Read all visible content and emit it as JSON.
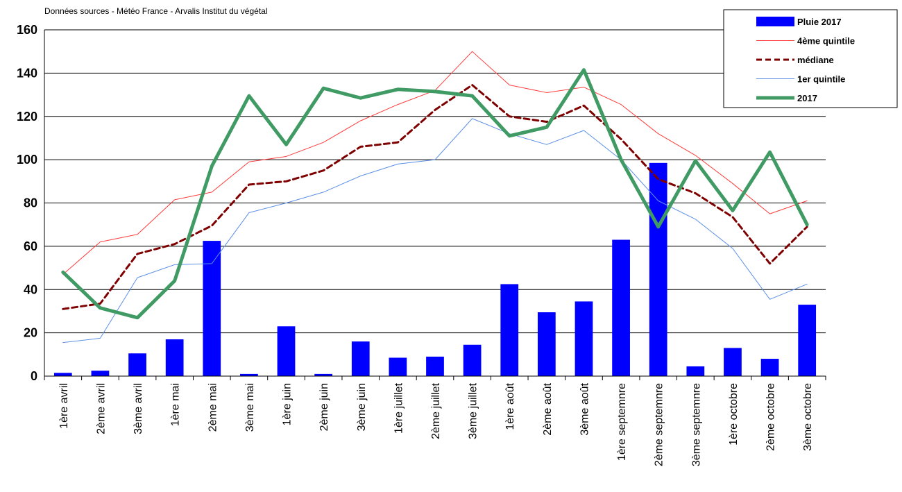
{
  "source_note": "Données sources - Météo France - Arvalis Institut du végétal",
  "colors": {
    "bars": "#0000ff",
    "q4": "#ff3b3b",
    "median": "#7f0000",
    "q1": "#5b8fe6",
    "y2017": "#3f9a63"
  },
  "chart_data": {
    "type": "bar+line",
    "title": "",
    "xlabel": "",
    "ylabel": "",
    "ylim": [
      0,
      160
    ],
    "yticks": [
      0,
      20,
      40,
      60,
      80,
      100,
      120,
      140,
      160
    ],
    "grid": true,
    "legend_position": "top-right",
    "categories": [
      "1ère avril",
      "2ème avril",
      "3ème avril",
      "1ère mai",
      "2ème mai",
      "3ème mai",
      "1ère juin",
      "2ème juin",
      "3ème juin",
      "1ère juillet",
      "2ème juillet",
      "3ème juillet",
      "1ère août",
      "2ème août",
      "3ème août",
      "1ère septemnre",
      "2ème septemnre",
      "3ème septemnre",
      "1ère octobre",
      "2ème octobre",
      "3ème octobre"
    ],
    "series": [
      {
        "name": "Pluie 2017",
        "kind": "bar",
        "color": "#0000ff",
        "values": [
          1.5,
          2.5,
          10.5,
          17,
          62.5,
          1,
          23,
          1,
          16,
          8.5,
          9,
          14.5,
          42.5,
          29.5,
          34.5,
          63,
          98.5,
          4.5,
          13,
          8,
          33
        ]
      },
      {
        "name": "4ème quintile",
        "kind": "line",
        "color": "#ff3b3b",
        "width": 1,
        "dash": "",
        "values": [
          47,
          62,
          65.5,
          81.5,
          85,
          99,
          101.5,
          108,
          118,
          125.5,
          132,
          150,
          134.5,
          131,
          133.5,
          125.5,
          112,
          102,
          89,
          75,
          81
        ]
      },
      {
        "name": "médiane",
        "kind": "line",
        "color": "#7f0000",
        "width": 3,
        "dash": "8,5",
        "values": [
          31,
          33.5,
          56.5,
          61,
          69.5,
          88.5,
          90,
          95,
          106,
          108,
          123,
          134.5,
          120,
          117.5,
          125,
          109.5,
          91,
          84.5,
          73.5,
          52,
          69
        ]
      },
      {
        "name": "1er quintile",
        "kind": "line",
        "color": "#5b8fe6",
        "width": 1,
        "dash": "",
        "values": [
          15.5,
          17.5,
          45.5,
          51.5,
          52,
          75.5,
          80,
          85,
          92.5,
          98,
          100,
          119,
          112,
          107,
          113.5,
          100,
          81,
          72.5,
          59,
          35.5,
          42.5
        ]
      },
      {
        "name": "2017",
        "kind": "line",
        "color": "#3f9a63",
        "width": 5,
        "dash": "",
        "values": [
          48,
          31.5,
          27,
          44,
          97,
          129.5,
          107,
          133,
          128.5,
          132.5,
          131.5,
          129.5,
          111,
          115,
          141.5,
          100,
          69,
          99.5,
          76.5,
          103.5,
          70
        ]
      }
    ]
  }
}
